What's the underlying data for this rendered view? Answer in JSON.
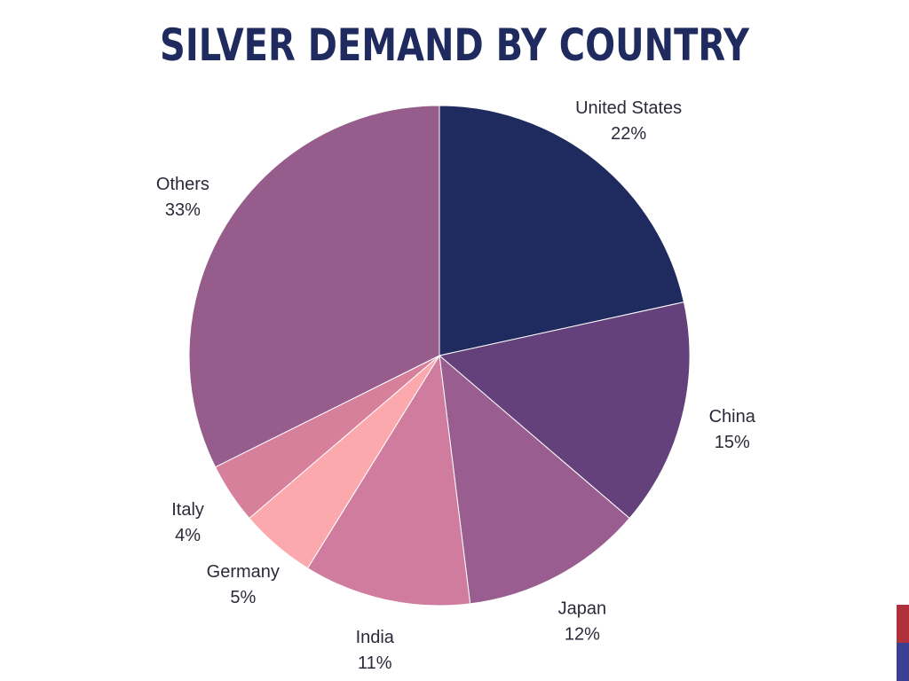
{
  "chart_data": {
    "type": "pie",
    "title": "SILVER DEMAND BY COUNTRY",
    "slices": [
      {
        "label": "United States",
        "value": 22,
        "display": "22%",
        "color": "#1f2a5f"
      },
      {
        "label": "China",
        "value": 15,
        "display": "15%",
        "color": "#65417c"
      },
      {
        "label": "Japan",
        "value": 12,
        "display": "12%",
        "color": "#9a5d90"
      },
      {
        "label": "India",
        "value": 11,
        "display": "11%",
        "color": "#cf7c9e"
      },
      {
        "label": "Germany",
        "value": 5,
        "display": "5%",
        "color": "#fca9ae"
      },
      {
        "label": "Italy",
        "value": 4,
        "display": "4%",
        "color": "#d6809c"
      },
      {
        "label": "Others",
        "value": 33,
        "display": "33%",
        "color": "#955c8c"
      }
    ],
    "start_angle_deg": 0,
    "direction": "clockwise",
    "legend": "none"
  },
  "decor": {
    "corner_colors": [
      "#b0313b",
      "#3a3f91"
    ]
  }
}
